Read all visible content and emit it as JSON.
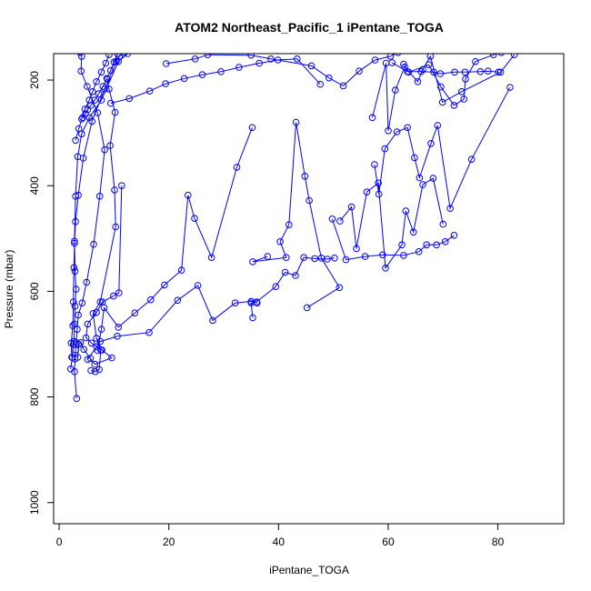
{
  "chart_data": {
    "type": "line",
    "title": "ATOM2 Northeast_Pacific_1 iPentane_TOGA",
    "xlabel": "iPentane_TOGA",
    "ylabel": "Pressure (mbar)",
    "xlim": [
      -1,
      92
    ],
    "ylim": [
      1040,
      150
    ],
    "y_reversed": true,
    "grid": false,
    "legend": "none",
    "color": "#0000ff",
    "x_ticks": [
      0,
      20,
      40,
      60,
      80
    ],
    "y_ticks": [
      200,
      400,
      600,
      800,
      1000
    ],
    "series": [
      {
        "x": [
          3.2,
          2.8,
          2.9,
          3.0,
          3.1,
          3.3,
          3.5,
          4.2,
          5.0,
          6.3,
          7.4,
          8.3,
          7.0,
          5.1,
          4.0,
          4.1,
          3.8
        ],
        "y": [
          803,
          752,
          728,
          711,
          697,
          672,
          645,
          622,
          583,
          511,
          420,
          332,
          262,
          212,
          183,
          155,
          148
        ]
      },
      {
        "x": [
          2.1,
          2.4,
          2.6,
          2.7,
          2.8,
          2.9,
          3.1,
          2.9,
          2.8,
          3.0,
          3.4,
          4.1,
          5.5,
          7.7,
          10.8,
          12.5
        ],
        "y": [
          747,
          725,
          700,
          695,
          662,
          628,
          596,
          562,
          505,
          420,
          345,
          302,
          271,
          238,
          165,
          150
        ]
      },
      {
        "x": [
          2.3,
          2.2,
          2.5,
          2.6,
          2.7,
          2.8,
          3.0,
          3.5,
          4.4,
          6.0,
          8.3,
          10.4,
          11.0,
          11.8
        ],
        "y": [
          725,
          698,
          665,
          620,
          555,
          509,
          468,
          418,
          348,
          278,
          217,
          165,
          155,
          148
        ]
      },
      {
        "x": [
          3.4,
          3.6,
          3.9,
          4.5,
          5.7,
          6.5,
          9.6,
          7.8,
          6.8,
          6.2,
          7.5,
          10.3,
          10.1,
          9.3,
          10.2,
          9.1,
          8.8
        ],
        "y": [
          725,
          700,
          697,
          710,
          727,
          738,
          726,
          711,
          689,
          642,
          620,
          478,
          408,
          324,
          261,
          217,
          198
        ]
      },
      {
        "x": [
          5.8,
          6.6,
          7.3,
          7.6,
          6.8,
          5.9,
          4.9,
          5.2,
          6.8,
          7.9,
          9.9,
          10.9,
          11.4
        ],
        "y": [
          750,
          752,
          748,
          711,
          705,
          698,
          688,
          662,
          640,
          620,
          609,
          603,
          400
        ]
      },
      {
        "x": [
          7.0,
          7.7,
          8.2,
          10.8,
          13.8,
          16.7,
          19.2,
          22.3,
          23.5,
          24.7,
          27.8,
          32.4,
          35.2
        ],
        "y": [
          712,
          672,
          631,
          668,
          641,
          616,
          588,
          560,
          418,
          462,
          536,
          365,
          290
        ]
      },
      {
        "x": [
          5.2,
          7.5,
          10.6,
          16.4,
          21.6,
          25.3,
          28.0,
          32.1,
          35.0,
          36.1
        ],
        "y": [
          729,
          695,
          685,
          678,
          617,
          589,
          655,
          622,
          619,
          622
        ]
      },
      {
        "x": [
          35.3,
          35.0,
          36.0,
          39.5,
          41.2,
          43.1,
          44.6,
          46.6,
          48.9,
          50.2
        ],
        "y": [
          650,
          622,
          620,
          591,
          564,
          570,
          536,
          538,
          539,
          537
        ]
      },
      {
        "x": [
          45.2,
          51.1,
          47.8,
          45.6,
          44.8,
          43.2,
          41.9,
          40.3,
          41.4,
          35.3,
          38.0
        ],
        "y": [
          631,
          593,
          537,
          428,
          382,
          280,
          474,
          506,
          536,
          544,
          534
        ]
      },
      {
        "x": [
          49.8,
          52.3,
          55.8,
          59.0,
          62.8,
          65.6,
          67.0,
          68.8,
          70.4,
          72.0
        ],
        "y": [
          463,
          540,
          534,
          531,
          532,
          525,
          512,
          512,
          506,
          494
        ]
      },
      {
        "x": [
          51.2,
          53.3,
          54.2,
          56.1,
          58.2,
          59.5,
          62.5,
          63.2,
          64.6,
          66.3,
          68.2,
          70.0
        ],
        "y": [
          467,
          440,
          519,
          412,
          395,
          556,
          512,
          448,
          488,
          398,
          386,
          473
        ]
      },
      {
        "x": [
          57.5,
          58.3,
          59.4,
          61.6,
          63.5,
          64.8,
          65.7,
          67.8,
          69.0,
          71.3,
          75.2,
          82.2
        ],
        "y": [
          360,
          416,
          330,
          298,
          290,
          347,
          385,
          320,
          286,
          443,
          350,
          214
        ]
      },
      {
        "x": [
          57.1,
          59.6,
          60.0,
          61.3,
          63.0,
          65.4,
          66.3,
          67.7,
          69.9,
          73.4,
          80.5,
          83.0
        ],
        "y": [
          271,
          168,
          296,
          219,
          175,
          203,
          180,
          155,
          242,
          222,
          185,
          152
        ]
      },
      {
        "x": [
          60.7,
          63.5,
          66.0,
          68.3,
          69.5,
          72.1,
          74.0,
          76.8,
          78.2,
          80.1
        ],
        "y": [
          167,
          184,
          184,
          185,
          188,
          185,
          185,
          184,
          183,
          185
        ]
      },
      {
        "x": [
          62.8,
          63.7,
          67.4,
          69.6,
          72.0,
          73.8,
          74.1,
          75.9,
          79.2,
          80.6
        ],
        "y": [
          170,
          185,
          171,
          213,
          248,
          236,
          198,
          165,
          152,
          148
        ]
      },
      {
        "x": [
          19.5,
          24.8,
          27.1,
          35.0,
          38.6,
          46.0,
          49.2,
          51.8,
          54.7,
          57.6,
          60.4,
          61.8
        ],
        "y": [
          169,
          160,
          152,
          153,
          160,
          173,
          196,
          211,
          183,
          162,
          155,
          148
        ]
      },
      {
        "x": [
          9.4,
          12.8,
          16.5,
          19.4,
          22.8,
          26.1,
          29.5,
          32.8,
          36.5,
          39.9,
          43.4,
          47.6
        ],
        "y": [
          244,
          235,
          221,
          207,
          197,
          190,
          184,
          176,
          168,
          162,
          160,
          208
        ]
      },
      {
        "x": [
          4.3,
          4.8,
          5.2,
          5.8,
          6.5,
          7.2,
          8.0,
          8.7,
          9.4,
          10.0,
          10.6
        ],
        "y": [
          271,
          264,
          256,
          248,
          238,
          226,
          212,
          197,
          182,
          166,
          150
        ]
      },
      {
        "x": [
          3.0,
          3.6,
          4.1,
          4.7,
          5.5,
          6.1,
          6.8,
          7.7,
          8.5,
          9.1
        ],
        "y": [
          314,
          292,
          274,
          255,
          238,
          222,
          203,
          185,
          168,
          152
        ]
      }
    ]
  }
}
